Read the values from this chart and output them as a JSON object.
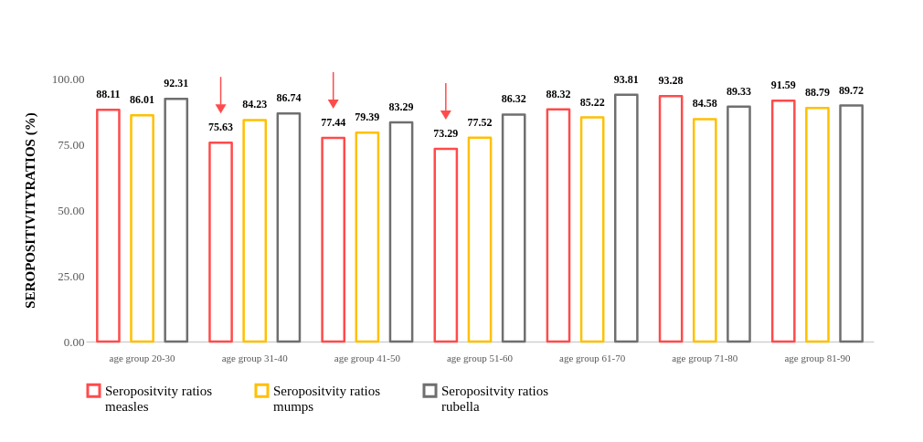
{
  "chart_data": {
    "type": "bar",
    "ylabel": "SEROPOSITIVITYRATIOS (%)",
    "categories": [
      "age group 20-30",
      "age group 31-40",
      "age group 41-50",
      "age group 51-60",
      "age group 61-70",
      "age group 71-80",
      "age group 81-90"
    ],
    "series": [
      {
        "name": "Seropositvity ratios measles",
        "color": "#ff4b4b",
        "values": [
          88.11,
          75.63,
          77.44,
          73.29,
          88.32,
          93.28,
          91.59
        ]
      },
      {
        "name": "Seropositvity ratios mumps",
        "color": "#ffc000",
        "values": [
          86.01,
          84.23,
          79.39,
          77.52,
          85.22,
          84.58,
          88.79
        ]
      },
      {
        "name": "Seropositvity ratios rubella",
        "color": "#6f6f6f",
        "values": [
          92.31,
          86.74,
          83.29,
          86.32,
          93.81,
          89.33,
          89.72
        ]
      }
    ],
    "ylim": [
      0,
      100
    ],
    "yticks": [
      {
        "value": 0,
        "label": "0.00"
      },
      {
        "value": 25,
        "label": "25.00"
      },
      {
        "value": 50,
        "label": "50.00"
      },
      {
        "value": 75,
        "label": "75.00"
      },
      {
        "value": 100,
        "label": "100.00"
      }
    ],
    "data_labels": true,
    "legend": "bottom"
  }
}
